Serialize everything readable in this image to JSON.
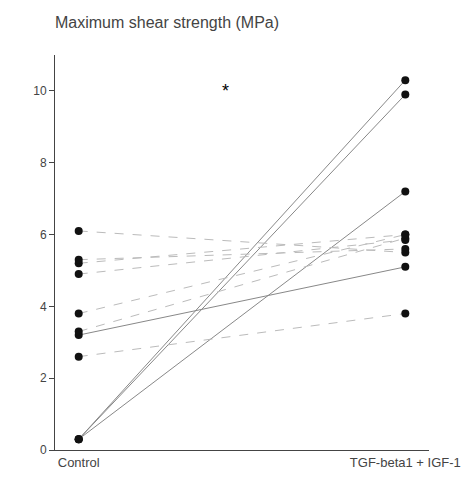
{
  "chart_data": {
    "type": "slope",
    "title": "Maximum shear strength (MPa)",
    "categories": [
      "Control",
      "TGF-beta1 + IGF-1"
    ],
    "color": "#111111",
    "marker": "circle",
    "series": [
      {
        "values": [
          0.3,
          10.3
        ],
        "color": "#888888",
        "line_style": "solid"
      },
      {
        "values": [
          0.3,
          9.9
        ],
        "color": "#888888",
        "line_style": "solid"
      },
      {
        "values": [
          0.3,
          7.2
        ],
        "color": "#888888",
        "line_style": "solid"
      },
      {
        "values": [
          2.6,
          3.8
        ],
        "color": "#bbbbbb",
        "line_style": "dashed"
      },
      {
        "values": [
          3.2,
          5.1
        ],
        "color": "#888888",
        "line_style": "solid"
      },
      {
        "values": [
          3.3,
          5.9
        ],
        "color": "#bbbbbb",
        "line_style": "dashed"
      },
      {
        "values": [
          3.8,
          6.0
        ],
        "color": "#bbbbbb",
        "line_style": "dashed"
      },
      {
        "values": [
          4.9,
          5.85
        ],
        "color": "#bbbbbb",
        "line_style": "dashed"
      },
      {
        "values": [
          5.2,
          6.0
        ],
        "color": "#bbbbbb",
        "line_style": "dashed"
      },
      {
        "values": [
          5.3,
          5.6
        ],
        "color": "#bbbbbb",
        "line_style": "dashed"
      },
      {
        "values": [
          6.1,
          5.5
        ],
        "color": "#bbbbbb",
        "line_style": "dashed"
      }
    ],
    "annotations": [
      {
        "text": "*",
        "x": 0.45,
        "y": 10.0
      }
    ],
    "ylim": [
      0,
      11
    ],
    "yticks": [
      0,
      2,
      4,
      6,
      8,
      10
    ],
    "grid": false
  }
}
